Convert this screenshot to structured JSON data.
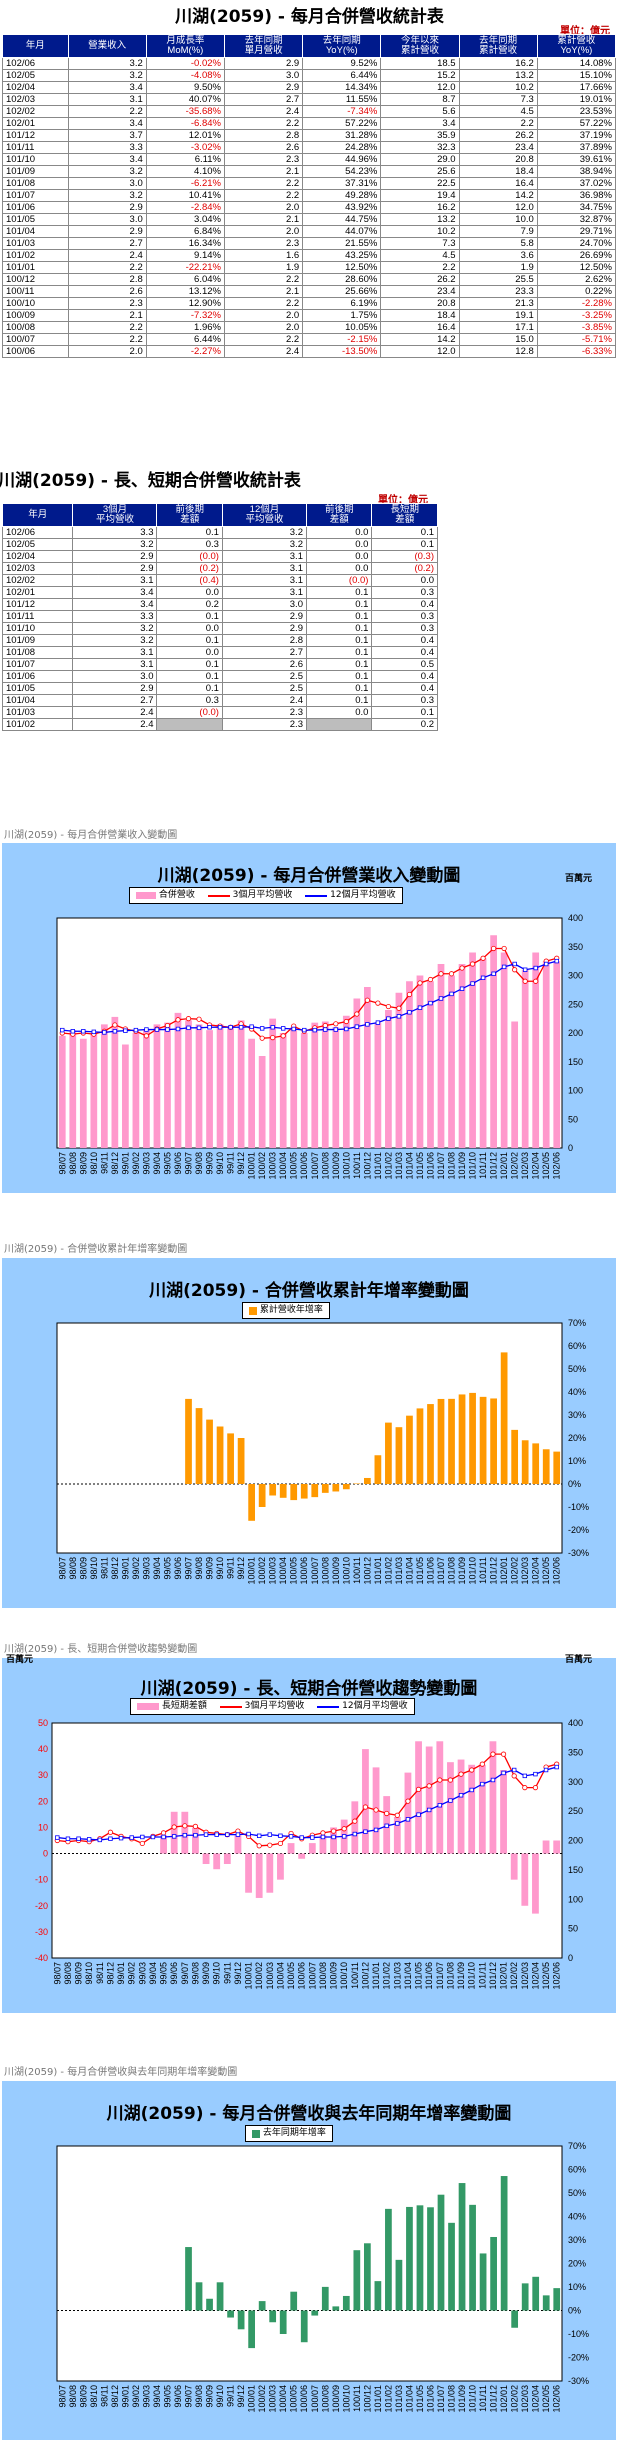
{
  "monthly_table": {
    "title": "川湖(2059)  - 每月合併營收統計表",
    "unit": "單位：億元",
    "headers": [
      "年月",
      "營業收入",
      "月成長率\nMoM(%)",
      "去年同期\n單月營收",
      "去年同期\nYoY(%)",
      "今年以來\n累計營收",
      "去年同期\n累計營收",
      "累計營收\nYoY(%)"
    ],
    "rows": [
      [
        "102/06",
        "3.2",
        "-0.02%",
        "2.9",
        "9.52%",
        "18.5",
        "16.2",
        "14.08%"
      ],
      [
        "102/05",
        "3.2",
        "-4.08%",
        "3.0",
        "6.44%",
        "15.2",
        "13.2",
        "15.10%"
      ],
      [
        "102/04",
        "3.4",
        "9.50%",
        "2.9",
        "14.34%",
        "12.0",
        "10.2",
        "17.66%"
      ],
      [
        "102/03",
        "3.1",
        "40.07%",
        "2.7",
        "11.55%",
        "8.7",
        "7.3",
        "19.01%"
      ],
      [
        "102/02",
        "2.2",
        "-35.68%",
        "2.4",
        "-7.34%",
        "5.6",
        "4.5",
        "23.53%"
      ],
      [
        "102/01",
        "3.4",
        "-6.84%",
        "2.2",
        "57.22%",
        "3.4",
        "2.2",
        "57.22%"
      ],
      [
        "101/12",
        "3.7",
        "12.01%",
        "2.8",
        "31.28%",
        "35.9",
        "26.2",
        "37.19%"
      ],
      [
        "101/11",
        "3.3",
        "-3.02%",
        "2.6",
        "24.28%",
        "32.3",
        "23.4",
        "37.89%"
      ],
      [
        "101/10",
        "3.4",
        "6.11%",
        "2.3",
        "44.96%",
        "29.0",
        "20.8",
        "39.61%"
      ],
      [
        "101/09",
        "3.2",
        "4.10%",
        "2.1",
        "54.23%",
        "25.6",
        "18.4",
        "38.94%"
      ],
      [
        "101/08",
        "3.0",
        "-6.21%",
        "2.2",
        "37.31%",
        "22.5",
        "16.4",
        "37.02%"
      ],
      [
        "101/07",
        "3.2",
        "10.41%",
        "2.2",
        "49.28%",
        "19.4",
        "14.2",
        "36.98%"
      ],
      [
        "101/06",
        "2.9",
        "-2.84%",
        "2.0",
        "43.92%",
        "16.2",
        "12.0",
        "34.75%"
      ],
      [
        "101/05",
        "3.0",
        "3.04%",
        "2.1",
        "44.75%",
        "13.2",
        "10.0",
        "32.87%"
      ],
      [
        "101/04",
        "2.9",
        "6.84%",
        "2.0",
        "44.07%",
        "10.2",
        "7.9",
        "29.71%"
      ],
      [
        "101/03",
        "2.7",
        "16.34%",
        "2.3",
        "21.55%",
        "7.3",
        "5.8",
        "24.70%"
      ],
      [
        "101/02",
        "2.4",
        "9.14%",
        "1.6",
        "43.25%",
        "4.5",
        "3.6",
        "26.69%"
      ],
      [
        "101/01",
        "2.2",
        "-22.21%",
        "1.9",
        "12.50%",
        "2.2",
        "1.9",
        "12.50%"
      ],
      [
        "100/12",
        "2.8",
        "6.04%",
        "2.2",
        "28.60%",
        "26.2",
        "25.5",
        "2.62%"
      ],
      [
        "100/11",
        "2.6",
        "13.12%",
        "2.1",
        "25.66%",
        "23.4",
        "23.3",
        "0.22%"
      ],
      [
        "100/10",
        "2.3",
        "12.90%",
        "2.2",
        "6.19%",
        "20.8",
        "21.3",
        "-2.28%"
      ],
      [
        "100/09",
        "2.1",
        "-7.32%",
        "2.0",
        "1.75%",
        "18.4",
        "19.1",
        "-3.25%"
      ],
      [
        "100/08",
        "2.2",
        "1.96%",
        "2.0",
        "10.05%",
        "16.4",
        "17.1",
        "-3.85%"
      ],
      [
        "100/07",
        "2.2",
        "6.44%",
        "2.2",
        "-2.15%",
        "14.2",
        "15.0",
        "-5.71%"
      ],
      [
        "100/06",
        "2.0",
        "-2.27%",
        "2.4",
        "-13.50%",
        "12.0",
        "12.8",
        "-6.33%"
      ]
    ]
  },
  "avg_table": {
    "title": "川湖(2059)  - 長、短期合併營收統計表",
    "unit": "單位：億元",
    "headers": [
      "年月",
      "3個月\n平均營收",
      "前後期\n差額",
      "12個月\n平均營收",
      "前後期\n差額",
      "長短期\n差額"
    ],
    "rows": [
      [
        "102/06",
        "3.3",
        "0.1",
        "3.2",
        "0.0",
        "0.1"
      ],
      [
        "102/05",
        "3.2",
        "0.3",
        "3.2",
        "0.0",
        "0.1"
      ],
      [
        "102/04",
        "2.9",
        "(0.0)",
        "3.1",
        "0.0",
        "(0.3)"
      ],
      [
        "102/03",
        "2.9",
        "(0.2)",
        "3.1",
        "0.0",
        "(0.2)"
      ],
      [
        "102/02",
        "3.1",
        "(0.4)",
        "3.1",
        "(0.0)",
        "0.0"
      ],
      [
        "102/01",
        "3.4",
        "0.0",
        "3.1",
        "0.1",
        "0.3"
      ],
      [
        "101/12",
        "3.4",
        "0.2",
        "3.0",
        "0.1",
        "0.4"
      ],
      [
        "101/11",
        "3.3",
        "0.1",
        "2.9",
        "0.1",
        "0.3"
      ],
      [
        "101/10",
        "3.2",
        "0.0",
        "2.9",
        "0.1",
        "0.3"
      ],
      [
        "101/09",
        "3.2",
        "0.1",
        "2.8",
        "0.1",
        "0.4"
      ],
      [
        "101/08",
        "3.1",
        "0.0",
        "2.7",
        "0.1",
        "0.4"
      ],
      [
        "101/07",
        "3.1",
        "0.1",
        "2.6",
        "0.1",
        "0.5"
      ],
      [
        "101/06",
        "3.0",
        "0.1",
        "2.5",
        "0.1",
        "0.4"
      ],
      [
        "101/05",
        "2.9",
        "0.1",
        "2.5",
        "0.1",
        "0.4"
      ],
      [
        "101/04",
        "2.7",
        "0.3",
        "2.4",
        "0.1",
        "0.3"
      ],
      [
        "101/03",
        "2.4",
        "(0.0)",
        "2.3",
        "0.0",
        "0.1"
      ],
      [
        "101/02",
        "2.4",
        "",
        "2.3",
        "",
        "0.2"
      ]
    ]
  },
  "captions": {
    "c1": "川湖(2059) - 每月合併營業收入變動圖",
    "c2": "川湖(2059) - 合併營收累計年增率變動圖",
    "c3": "川湖(2059) - 長、短期合併營收趨勢變動圖",
    "c4": "川湖(2059) - 每月合併營收與去年同期年增率變動圖"
  },
  "colors": {
    "pink": "#ff99cc",
    "orange": "#ff9900",
    "green": "#339966",
    "red": "#ff0000",
    "blue": "#0000ff",
    "header": "#001a8c",
    "panel": "#99ccff"
  },
  "chart_data": [
    {
      "type": "bar",
      "title": "川湖(2059)  - 每月合併營業收入變動圖",
      "y_unit": "百萬元",
      "ylim": [
        0,
        400
      ],
      "yticks": [
        0,
        50,
        100,
        150,
        200,
        250,
        300,
        350,
        400
      ],
      "categories": [
        "98/07",
        "98/08",
        "98/09",
        "98/10",
        "98/11",
        "98/12",
        "99/01",
        "99/02",
        "99/03",
        "99/04",
        "99/05",
        "99/06",
        "99/07",
        "99/08",
        "99/09",
        "99/10",
        "99/11",
        "99/12",
        "100/01",
        "100/02",
        "100/03",
        "100/04",
        "100/05",
        "100/06",
        "100/07",
        "100/08",
        "100/09",
        "100/10",
        "100/11",
        "100/12",
        "101/01",
        "101/02",
        "101/03",
        "101/04",
        "101/05",
        "101/06",
        "101/07",
        "101/08",
        "101/09",
        "101/10",
        "101/11",
        "101/12",
        "102/01",
        "102/02",
        "102/03",
        "102/04",
        "102/05",
        "102/06"
      ],
      "series": [
        {
          "name": "合併營收",
          "kind": "bar",
          "values": [
            195,
            205,
            190,
            200,
            215,
            228,
            180,
            200,
            205,
            215,
            218,
            235,
            222,
            215,
            205,
            215,
            210,
            222,
            190,
            160,
            225,
            200,
            210,
            200,
            218,
            220,
            210,
            230,
            260,
            280,
            218,
            240,
            270,
            290,
            300,
            290,
            320,
            300,
            320,
            340,
            330,
            370,
            340,
            220,
            310,
            340,
            325,
            325
          ]
        },
        {
          "name": "3個月平均營收",
          "kind": "line",
          "values": [
            200,
            198,
            200,
            198,
            203,
            214,
            207,
            203,
            195,
            207,
            213,
            223,
            225,
            224,
            214,
            212,
            210,
            216,
            207,
            191,
            192,
            195,
            212,
            203,
            209,
            213,
            216,
            220,
            233,
            257,
            252,
            246,
            243,
            267,
            287,
            293,
            303,
            303,
            313,
            320,
            330,
            347,
            347,
            310,
            290,
            290,
            325,
            330
          ]
        },
        {
          "name": "12個月平均營收",
          "kind": "line",
          "values": [
            205,
            203,
            203,
            202,
            201,
            203,
            204,
            205,
            206,
            206,
            206,
            207,
            209,
            209,
            210,
            210,
            210,
            210,
            211,
            208,
            210,
            208,
            207,
            205,
            205,
            206,
            206,
            207,
            211,
            215,
            218,
            225,
            229,
            236,
            244,
            252,
            260,
            268,
            277,
            286,
            296,
            303,
            315,
            320,
            310,
            313,
            320,
            325
          ]
        }
      ]
    },
    {
      "type": "bar",
      "title": "川湖(2059)  - 合併營收累計年增率變動圖",
      "ylim": [
        -30,
        70
      ],
      "yticks": [
        -30,
        -20,
        -10,
        0,
        10,
        20,
        30,
        40,
        50,
        60,
        70
      ],
      "tick_suffix": "%",
      "categories": [
        "98/07",
        "98/08",
        "98/09",
        "98/10",
        "98/11",
        "98/12",
        "99/01",
        "99/02",
        "99/03",
        "99/04",
        "99/05",
        "99/06",
        "99/07",
        "99/08",
        "99/09",
        "99/10",
        "99/11",
        "99/12",
        "100/01",
        "100/02",
        "100/03",
        "100/04",
        "100/05",
        "100/06",
        "100/07",
        "100/08",
        "100/09",
        "100/10",
        "100/11",
        "100/12",
        "101/01",
        "101/02",
        "101/03",
        "101/04",
        "101/05",
        "101/06",
        "101/07",
        "101/08",
        "101/09",
        "101/10",
        "101/11",
        "101/12",
        "102/01",
        "102/02",
        "102/03",
        "102/04",
        "102/05",
        "102/06"
      ],
      "series": [
        {
          "name": "累計營收年增率",
          "kind": "bar",
          "values": [
            0,
            0,
            0,
            0,
            0,
            0,
            0,
            0,
            0,
            0,
            0,
            0,
            37,
            33,
            28,
            25,
            22,
            20,
            -16,
            -10,
            -5,
            -6,
            -7,
            -6.33,
            -5.71,
            -3.85,
            -3.25,
            -2.28,
            0.22,
            2.62,
            12.5,
            26.69,
            24.7,
            29.71,
            32.87,
            34.75,
            36.98,
            37.02,
            38.94,
            39.61,
            37.89,
            37.19,
            57.22,
            23.53,
            19.01,
            17.66,
            15.1,
            14.08
          ]
        }
      ]
    },
    {
      "type": "bar",
      "title": "川湖(2059)  - 長、短期合併營收趨勢變動圖",
      "y_unit": "百萬元",
      "ylim_left": [
        -40,
        50
      ],
      "yticks_left": [
        -40,
        -30,
        -20,
        -10,
        0,
        10,
        20,
        30,
        40,
        50
      ],
      "ylim_right": [
        0,
        400
      ],
      "yticks_right": [
        0,
        50,
        100,
        150,
        200,
        250,
        300,
        350,
        400
      ],
      "categories": [
        "98/07",
        "98/08",
        "98/09",
        "98/10",
        "98/11",
        "98/12",
        "99/01",
        "99/02",
        "99/03",
        "99/04",
        "99/05",
        "99/06",
        "99/07",
        "99/08",
        "99/09",
        "99/10",
        "99/11",
        "99/12",
        "100/01",
        "100/02",
        "100/03",
        "100/04",
        "100/05",
        "100/06",
        "100/07",
        "100/08",
        "100/09",
        "100/10",
        "100/11",
        "100/12",
        "101/01",
        "101/02",
        "101/03",
        "101/04",
        "101/05",
        "101/06",
        "101/07",
        "101/08",
        "101/09",
        "101/10",
        "101/11",
        "101/12",
        "102/01",
        "102/02",
        "102/03",
        "102/04",
        "102/05",
        "102/06"
      ],
      "series": [
        {
          "name": "長短期差額",
          "kind": "bar",
          "axis": "left",
          "values": [
            0,
            0,
            0,
            0,
            0,
            0,
            0,
            0,
            0,
            0,
            7,
            16,
            16,
            10,
            -4,
            -6,
            -4,
            7,
            -15,
            -17,
            -15,
            -10,
            4,
            -2,
            4,
            7,
            10,
            13,
            20,
            40,
            33,
            22,
            14,
            31,
            43,
            41,
            43,
            35,
            36,
            34,
            34,
            43,
            32,
            -10,
            -20,
            -23,
            5,
            5
          ]
        },
        {
          "name": "3個月平均營收",
          "kind": "line",
          "axis": "right",
          "values": [
            200,
            198,
            200,
            198,
            203,
            214,
            207,
            203,
            195,
            207,
            213,
            223,
            225,
            224,
            214,
            212,
            210,
            216,
            207,
            191,
            192,
            195,
            212,
            203,
            209,
            213,
            216,
            220,
            233,
            257,
            252,
            246,
            243,
            267,
            287,
            293,
            303,
            303,
            313,
            320,
            330,
            347,
            347,
            310,
            290,
            290,
            325,
            330
          ]
        },
        {
          "name": "12個月平均營收",
          "kind": "line",
          "axis": "right",
          "values": [
            205,
            203,
            203,
            202,
            201,
            203,
            204,
            205,
            206,
            206,
            206,
            207,
            209,
            209,
            210,
            210,
            210,
            210,
            211,
            208,
            210,
            208,
            207,
            205,
            205,
            206,
            206,
            207,
            211,
            215,
            218,
            225,
            229,
            236,
            244,
            252,
            260,
            268,
            277,
            286,
            296,
            303,
            315,
            320,
            310,
            313,
            320,
            325
          ]
        }
      ]
    },
    {
      "type": "bar",
      "title": "川湖(2059)  - 每月合併營收與去年同期年增率變動圖",
      "ylim": [
        -30,
        70
      ],
      "yticks": [
        -30,
        -20,
        -10,
        0,
        10,
        20,
        30,
        40,
        50,
        60,
        70
      ],
      "tick_suffix": "%",
      "categories": [
        "98/07",
        "98/08",
        "98/09",
        "98/10",
        "98/11",
        "98/12",
        "99/01",
        "99/02",
        "99/03",
        "99/04",
        "99/05",
        "99/06",
        "99/07",
        "99/08",
        "99/09",
        "99/10",
        "99/11",
        "99/12",
        "100/01",
        "100/02",
        "100/03",
        "100/04",
        "100/05",
        "100/06",
        "100/07",
        "100/08",
        "100/09",
        "100/10",
        "100/11",
        "100/12",
        "101/01",
        "101/02",
        "101/03",
        "101/04",
        "101/05",
        "101/06",
        "101/07",
        "101/08",
        "101/09",
        "101/10",
        "101/11",
        "101/12",
        "102/01",
        "102/02",
        "102/03",
        "102/04",
        "102/05",
        "102/06"
      ],
      "series": [
        {
          "name": "去年同期年增率",
          "kind": "bar",
          "values": [
            0,
            0,
            0,
            0,
            0,
            0,
            0,
            0,
            0,
            0,
            0,
            0,
            27,
            12,
            5,
            12,
            -3,
            -8,
            -16,
            4,
            -5,
            -10,
            8,
            -13.5,
            -2.15,
            10.05,
            1.75,
            6.19,
            25.66,
            28.6,
            12.5,
            43.25,
            21.55,
            44.07,
            44.75,
            43.92,
            49.28,
            37.31,
            54.23,
            44.96,
            24.28,
            31.28,
            57.22,
            -7.34,
            11.55,
            14.34,
            6.44,
            9.52
          ]
        }
      ]
    }
  ]
}
